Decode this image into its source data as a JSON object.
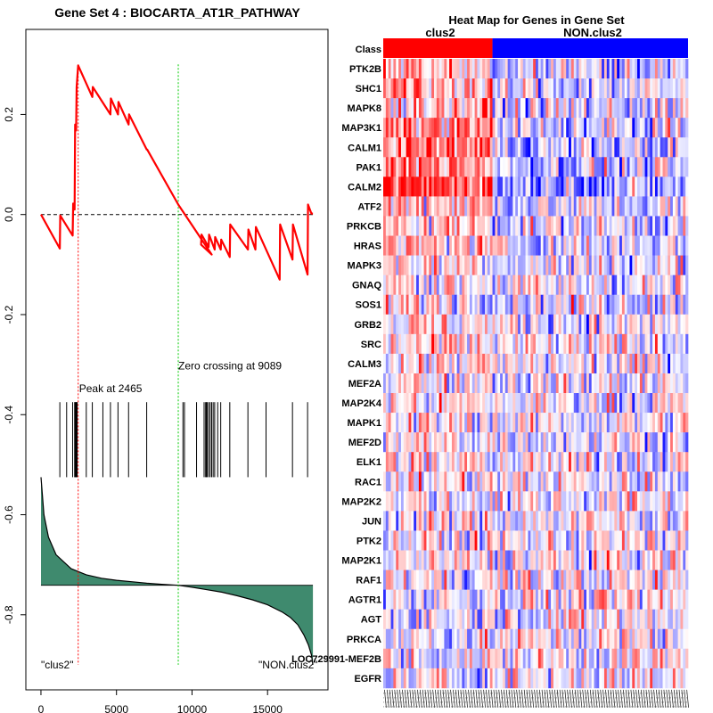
{
  "chart_data": [
    {
      "type": "line",
      "title": "Gene Set  4 : BIOCARTA_AT1R_PATHWAY",
      "xlabel": "",
      "ylabel": "",
      "xlim": [
        -1000,
        19000
      ],
      "ylim": [
        -0.95,
        0.37
      ],
      "x_ticks": [
        0,
        5000,
        10000,
        15000
      ],
      "x_tick_labels": [
        "0",
        "5000",
        "10000",
        "15000"
      ],
      "y_ticks": [
        0.2,
        0.0,
        -0.2,
        -0.4,
        -0.6,
        -0.8
      ],
      "y_tick_labels": [
        "0.2",
        "0.0",
        "-0.2",
        "-0.4",
        "-0.6",
        "-0.8"
      ],
      "colors": {
        "running_sum": "#ff0000",
        "peak_line": "#ff0000",
        "zero_line": "#00cc00",
        "ranked_fill": "#3f8a6e",
        "frame": "#000000"
      },
      "enrichment_curve": {
        "x": [
          0,
          1250,
          1280,
          2100,
          2130,
          2230,
          2260,
          2330,
          2360,
          2465,
          3400,
          3430,
          4600,
          4630,
          5100,
          5130,
          5800,
          5830,
          7000,
          7030,
          9089,
          11300,
          10600,
          10630,
          11100,
          11130,
          11500,
          11530,
          11900,
          11930,
          12500,
          12530,
          13700,
          13730,
          14200,
          14230,
          15800,
          15830,
          16650,
          16680,
          17650,
          17680,
          17900,
          18000
        ],
        "y": [
          0.0,
          -0.068,
          -0.002,
          -0.042,
          0.022,
          0.01,
          0.18,
          0.168,
          0.255,
          0.298,
          0.235,
          0.255,
          0.2,
          0.232,
          0.2,
          0.225,
          0.18,
          0.2,
          0.13,
          0.13,
          0.02,
          -0.08,
          -0.06,
          -0.04,
          -0.065,
          -0.04,
          -0.07,
          -0.045,
          -0.07,
          -0.05,
          -0.085,
          -0.02,
          -0.07,
          -0.03,
          -0.07,
          -0.025,
          -0.13,
          -0.02,
          -0.09,
          -0.02,
          -0.12,
          0.02,
          0.002,
          0.002
        ]
      },
      "hit_positions": [
        1250,
        1700,
        2100,
        2230,
        2260,
        2300,
        2330,
        2360,
        2400,
        3000,
        3400,
        4100,
        4600,
        5100,
        5800,
        7000,
        9400,
        9500,
        10300,
        10800,
        10900,
        10950,
        11000,
        11100,
        11200,
        11300,
        11400,
        11500,
        11700,
        11900,
        12500,
        13700,
        14900,
        16650,
        17650
      ],
      "ranked_list": {
        "x": [
          0,
          200,
          500,
          1000,
          2000,
          3000,
          4000,
          5000,
          6000,
          7000,
          8000,
          9089,
          10000,
          11000,
          12000,
          13000,
          14000,
          15000,
          16000,
          16500,
          17000,
          17400,
          17700,
          17900,
          18000
        ],
        "y": [
          -0.525,
          -0.6,
          -0.645,
          -0.68,
          -0.708,
          -0.72,
          -0.727,
          -0.731,
          -0.734,
          -0.737,
          -0.739,
          -0.741,
          -0.745,
          -0.75,
          -0.755,
          -0.762,
          -0.77,
          -0.78,
          -0.795,
          -0.805,
          -0.82,
          -0.84,
          -0.86,
          -0.88,
          -0.9
        ],
        "baseline": -0.741
      },
      "peak": {
        "x": 2465,
        "label": "Peak at 2465"
      },
      "zero_crossing": {
        "x": 9089,
        "label": "Zero crossing at 9089"
      },
      "annotations": [
        {
          "text": "\"clus2\"",
          "x": 0,
          "y": -0.9
        },
        {
          "text": "\"NON.clus2\"",
          "x": 14400,
          "y": -0.9
        }
      ]
    },
    {
      "type": "heatmap",
      "title": "Heat Map for Genes in Gene Set",
      "class_label": "Class",
      "classes": [
        {
          "name": "clus2",
          "fraction": 0.36,
          "color": "#ff0000"
        },
        {
          "name": "NON.clus2",
          "fraction": 0.64,
          "color": "#0000ff"
        }
      ],
      "genes": [
        "PTK2B",
        "SHC1",
        "MAPK8",
        "MAP3K1",
        "CALM1",
        "PAK1",
        "CALM2",
        "ATF2",
        "PRKCB",
        "HRAS",
        "MAPK3",
        "GNAQ",
        "SOS1",
        "GRB2",
        "SRC",
        "CALM3",
        "MEF2A",
        "MAP2K4",
        "MAPK1",
        "MEF2D",
        "ELK1",
        "RAC1",
        "MAP2K2",
        "JUN",
        "PTK2",
        "MAP2K1",
        "RAF1",
        "AGTR1",
        "AGT",
        "PRKCA",
        "LOC729991-MEF2B",
        "EGFR"
      ],
      "gene_bias": [
        0.35,
        0.3,
        0.3,
        0.45,
        0.55,
        0.5,
        0.75,
        0.3,
        0.2,
        0.2,
        0.15,
        0.1,
        0.1,
        0.1,
        0.1,
        0.1,
        0.1,
        0.05,
        0.05,
        0.05,
        0.05,
        0.05,
        0.0,
        0.0,
        0.0,
        0.0,
        0.0,
        -0.05,
        -0.05,
        -0.05,
        -0.05,
        -0.05
      ],
      "n_samples": 120
    }
  ]
}
